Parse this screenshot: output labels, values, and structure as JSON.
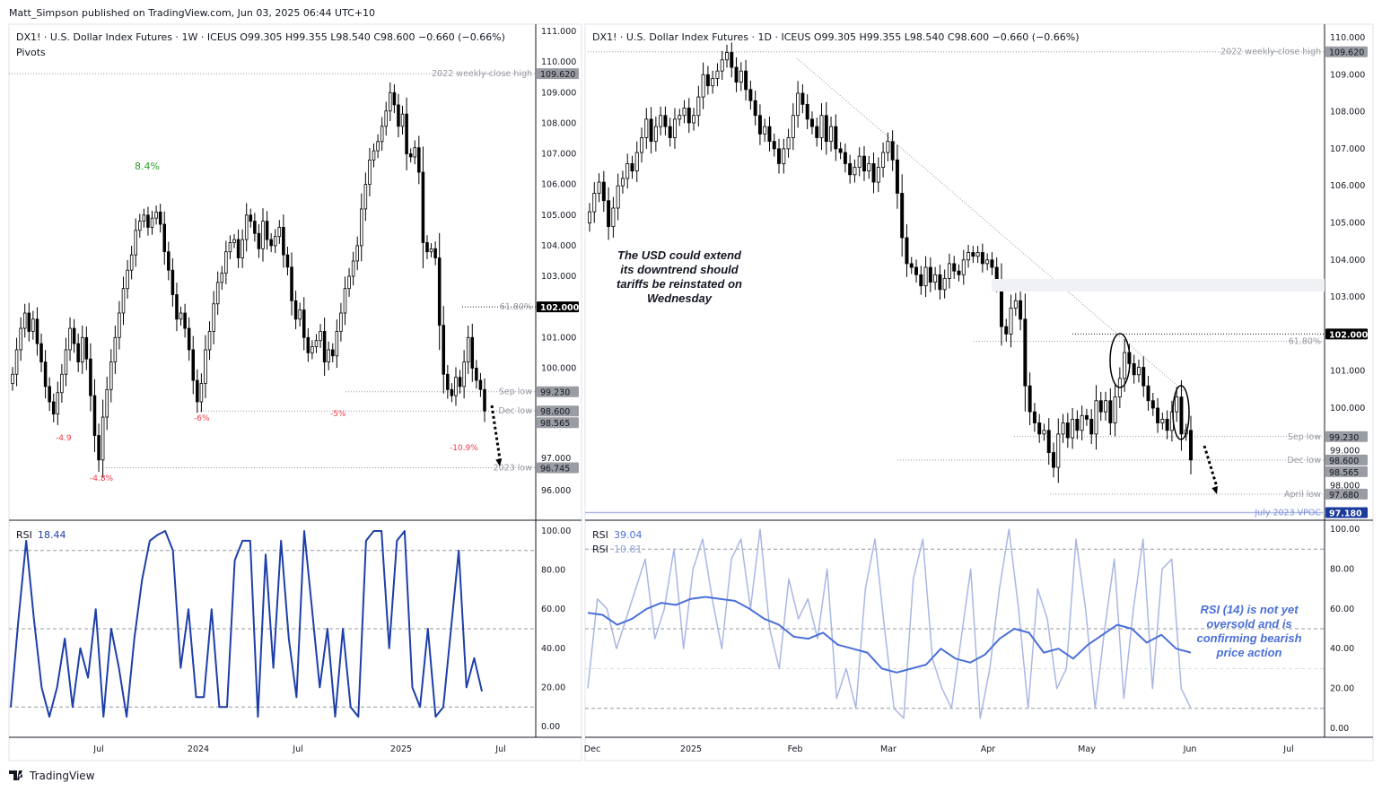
{
  "publisher_line": "Matt_Simpson published on TradingView.com, Jun 03, 2025 06:44 UTC+10",
  "brand": "TradingView",
  "colors": {
    "up_body": "#ffffff",
    "down_body": "#000000",
    "rsi_left": "#1e3fa8",
    "rsi_right_fast": "#a9b7e3",
    "rsi_right_slow": "#4a6fd8",
    "vpoc": "#1a3a9c",
    "level_badge": "#9a9ca3",
    "percent_up": "#2ea02e",
    "percent_down": "#f23645"
  },
  "chart_data": [
    {
      "type": "candlestick",
      "title": "DX1! · U.S. Dollar Index Futures · 1W · ICEUS  O99.305  H99.355  L98.540  C98.600  −0.660 (−0.66%)",
      "indicator_label": "Pivots",
      "timeframe": "1W",
      "ylim": [
        95.5,
        111
      ],
      "yticks": [
        "111.000",
        "110.000",
        "109.000",
        "108.000",
        "107.000",
        "106.000",
        "105.000",
        "104.000",
        "103.000",
        "101.000",
        "100.000",
        "97.000",
        "96.000"
      ],
      "xticks": [
        "Jul",
        "2024",
        "Jul",
        "2025",
        "Jul"
      ],
      "closes": [
        99.8,
        100.6,
        101.3,
        101.8,
        101.2,
        101.6,
        100.8,
        100.2,
        99.4,
        98.9,
        98.5,
        99.2,
        99.8,
        100.6,
        101.3,
        100.8,
        100.2,
        101.0,
        100.3,
        99.1,
        97.8,
        97.0,
        98.4,
        99.3,
        100.2,
        101.0,
        101.8,
        102.6,
        103.2,
        103.7,
        104.5,
        104.8,
        105.0,
        104.6,
        104.9,
        105.1,
        104.7,
        103.8,
        103.2,
        102.4,
        101.6,
        101.8,
        101.3,
        100.6,
        99.6,
        98.9,
        99.5,
        100.6,
        101.2,
        102.1,
        102.8,
        103.1,
        103.8,
        104.1,
        104.2,
        103.6,
        104.2,
        105.0,
        104.8,
        104.4,
        103.9,
        104.8,
        104.2,
        104.0,
        104.3,
        104.6,
        103.7,
        103.3,
        102.2,
        101.6,
        101.9,
        101.0,
        100.5,
        100.7,
        100.9,
        101.2,
        100.2,
        100.6,
        100.4,
        101.2,
        101.8,
        102.6,
        103.0,
        103.5,
        104.0,
        105.2,
        106.0,
        106.8,
        107.1,
        107.4,
        107.9,
        108.4,
        109.0,
        108.6,
        107.9,
        108.3,
        107.0,
        106.9,
        107.2,
        106.4,
        104.1,
        103.8,
        103.9,
        103.6,
        101.4,
        99.8,
        99.3,
        99.1,
        99.7,
        99.4,
        100.2,
        101.0,
        100.0,
        99.6,
        99.3,
        98.6
      ],
      "levels": [
        {
          "label": "2022 weekly-close high",
          "value": 109.62,
          "badge": "109.620"
        },
        {
          "label": "61.80%",
          "value": 102.0,
          "badge": "102.000"
        },
        {
          "label": "Sep low",
          "value": 99.23,
          "badge": "99.230"
        },
        {
          "label": "Dec low",
          "value": 98.6,
          "badge": "98.600"
        },
        {
          "label": "",
          "value": 98.565,
          "badge": "98.565"
        },
        {
          "label": "2023 low",
          "value": 96.745,
          "badge": "96.745"
        }
      ],
      "annotations": [
        {
          "text": "8.4%",
          "color": "up"
        },
        {
          "text": "-4.9",
          "color": "down"
        },
        {
          "text": "-4.8%",
          "color": "down"
        },
        {
          "text": "-6%",
          "color": "down"
        },
        {
          "text": "-5%",
          "color": "down"
        },
        {
          "text": "-10.9%",
          "color": "down"
        }
      ],
      "rsi": {
        "label": "RSI",
        "value_label": "18.44",
        "ylim": [
          0,
          100
        ],
        "yticks": [
          "100.00",
          "80.00",
          "60.00",
          "40.00",
          "20.00",
          "0.00"
        ],
        "bands": [
          90,
          50,
          10
        ],
        "values": [
          10,
          55,
          95,
          55,
          20,
          5,
          20,
          45,
          10,
          40,
          25,
          60,
          5,
          50,
          30,
          5,
          45,
          75,
          95,
          98,
          100,
          90,
          30,
          60,
          15,
          15,
          60,
          10,
          10,
          85,
          95,
          95,
          5,
          88,
          30,
          95,
          45,
          15,
          100,
          60,
          20,
          50,
          5,
          50,
          10,
          5,
          95,
          100,
          100,
          40,
          95,
          100,
          20,
          10,
          50,
          5,
          10,
          50,
          90,
          20,
          35,
          18
        ]
      }
    },
    {
      "type": "candlestick",
      "title": "DX1! · U.S. Dollar Index Futures · 1D · ICEUS  O99.305  H99.355  L98.540  C98.600  −0.660 (−0.66%)",
      "timeframe": "1D",
      "ylim": [
        96.7,
        110.4
      ],
      "yticks": [
        "110.000",
        "109.000",
        "108.000",
        "107.000",
        "106.000",
        "105.000",
        "104.000",
        "103.000",
        "101.000",
        "100.000",
        "99.000",
        "98.000"
      ],
      "xticks": [
        "Dec",
        "2025",
        "Feb",
        "Mar",
        "Apr",
        "May",
        "Jun",
        "Jul"
      ],
      "closes": [
        105.3,
        105.8,
        106.1,
        105.6,
        104.9,
        105.4,
        106.0,
        106.2,
        106.6,
        106.4,
        106.9,
        107.3,
        107.8,
        107.2,
        107.6,
        107.9,
        107.6,
        107.3,
        107.8,
        107.9,
        108.1,
        107.7,
        107.9,
        108.4,
        109.0,
        108.7,
        108.9,
        109.1,
        109.4,
        109.6,
        109.2,
        108.8,
        109.1,
        108.6,
        108.3,
        107.9,
        107.4,
        107.6,
        107.2,
        107.0,
        106.6,
        107.0,
        107.3,
        107.9,
        108.5,
        108.2,
        107.8,
        107.6,
        107.3,
        107.9,
        107.2,
        107.6,
        107.0,
        106.9,
        106.6,
        106.3,
        106.5,
        106.8,
        106.4,
        106.6,
        106.1,
        106.5,
        106.9,
        107.2,
        106.7,
        105.8,
        104.6,
        103.9,
        103.8,
        103.6,
        103.3,
        103.8,
        103.4,
        103.6,
        103.2,
        103.5,
        103.9,
        103.7,
        103.6,
        104.0,
        104.2,
        104.1,
        104.2,
        103.9,
        104.0,
        103.8,
        103.4,
        102.2,
        102.0,
        102.7,
        102.9,
        102.4,
        100.6,
        99.9,
        99.6,
        99.3,
        99.4,
        98.8,
        98.4,
        99.3,
        99.6,
        99.2,
        99.7,
        99.4,
        99.8,
        99.7,
        99.3,
        100.2,
        99.9,
        100.2,
        99.6,
        100.3,
        100.8,
        101.5,
        101.2,
        100.9,
        101.1,
        100.6,
        100.2,
        100.0,
        99.6,
        99.7,
        99.4,
        99.9,
        100.3,
        99.3,
        99.4,
        98.6
      ],
      "levels": [
        {
          "label": "2022 weekly-close high",
          "value": 109.62,
          "badge": "109.620"
        },
        {
          "label": "",
          "value": 102.0,
          "badge": "102.000"
        },
        {
          "label": "61.80%",
          "value": 101.8,
          "badge": ""
        },
        {
          "label": "Sep low",
          "value": 99.23,
          "badge": "99.230"
        },
        {
          "label": "Dec low",
          "value": 98.6,
          "badge": "98.600"
        },
        {
          "label": "",
          "value": 98.565,
          "badge": "98.565"
        },
        {
          "label": "April low",
          "value": 97.68,
          "badge": "97.680"
        },
        {
          "label": "July 2023 VPOC",
          "value": 97.18,
          "badge": "97.180"
        }
      ],
      "note": [
        "The USD could extend",
        "its downtrend should",
        "tariffs be reinstated on",
        "Wednesday"
      ],
      "rsi": {
        "labels": [
          {
            "label": "RSI",
            "value_label": "39.04"
          },
          {
            "label": "RSI",
            "value_label": "10.81"
          }
        ],
        "ylim": [
          0,
          100
        ],
        "yticks": [
          "100.00",
          "80.00",
          "60.00",
          "40.00",
          "20.00",
          "0.00"
        ],
        "bands": [
          90,
          50,
          30,
          10
        ],
        "fast": [
          20,
          65,
          60,
          40,
          55,
          70,
          85,
          45,
          60,
          90,
          40,
          80,
          95,
          65,
          40,
          85,
          95,
          60,
          100,
          50,
          30,
          75,
          55,
          65,
          45,
          80,
          15,
          30,
          10,
          70,
          95,
          50,
          10,
          5,
          75,
          95,
          35,
          20,
          10,
          45,
          80,
          5,
          30,
          70,
          100,
          60,
          10,
          70,
          55,
          20,
          30,
          95,
          60,
          10,
          50,
          85,
          15,
          60,
          95,
          20,
          80,
          85,
          20,
          10
        ],
        "slow": [
          58,
          57,
          52,
          55,
          60,
          63,
          62,
          65,
          66,
          65,
          64,
          60,
          55,
          52,
          46,
          45,
          48,
          42,
          40,
          38,
          30,
          28,
          30,
          32,
          40,
          35,
          33,
          37,
          45,
          50,
          48,
          38,
          40,
          35,
          42,
          47,
          52,
          50,
          43,
          47,
          40,
          38
        ],
        "note": [
          "RSI (14) is not yet",
          "oversold and is",
          "confirming bearish",
          "price action"
        ]
      }
    }
  ]
}
